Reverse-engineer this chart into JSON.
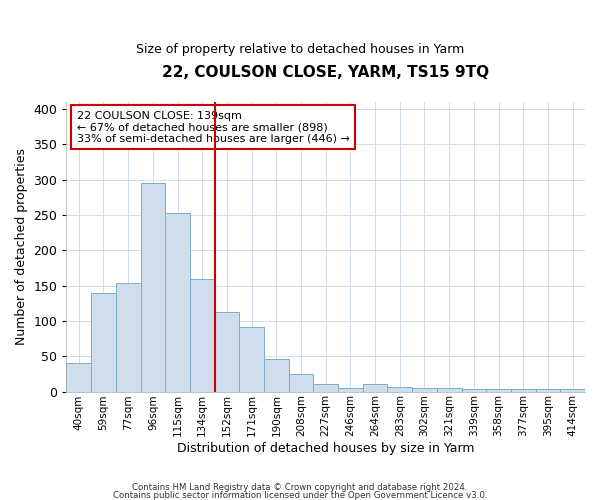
{
  "title": "22, COULSON CLOSE, YARM, TS15 9TQ",
  "subtitle": "Size of property relative to detached houses in Yarm",
  "xlabel": "Distribution of detached houses by size in Yarm",
  "ylabel": "Number of detached properties",
  "bar_labels": [
    "40sqm",
    "59sqm",
    "77sqm",
    "96sqm",
    "115sqm",
    "134sqm",
    "152sqm",
    "171sqm",
    "190sqm",
    "208sqm",
    "227sqm",
    "246sqm",
    "264sqm",
    "283sqm",
    "302sqm",
    "321sqm",
    "339sqm",
    "358sqm",
    "377sqm",
    "395sqm",
    "414sqm"
  ],
  "bar_values": [
    40,
    140,
    153,
    295,
    253,
    160,
    113,
    91,
    46,
    25,
    10,
    5,
    10,
    7,
    5,
    5,
    3,
    3,
    3,
    3,
    3
  ],
  "bar_color": "#cfdeed",
  "bar_edge_color": "#7aaec8",
  "vline_x": 5.5,
  "vline_color": "#cc0000",
  "ylim": [
    0,
    410
  ],
  "yticks": [
    0,
    50,
    100,
    150,
    200,
    250,
    300,
    350,
    400
  ],
  "annotation_title": "22 COULSON CLOSE: 139sqm",
  "annotation_line1": "← 67% of detached houses are smaller (898)",
  "annotation_line2": "33% of semi-detached houses are larger (446) →",
  "annotation_box_color": "#cc0000",
  "footer1": "Contains HM Land Registry data © Crown copyright and database right 2024.",
  "footer2": "Contains public sector information licensed under the Open Government Licence v3.0.",
  "bg_color": "#ffffff",
  "plot_bg_color": "#ffffff",
  "grid_color": "#d0dce8"
}
